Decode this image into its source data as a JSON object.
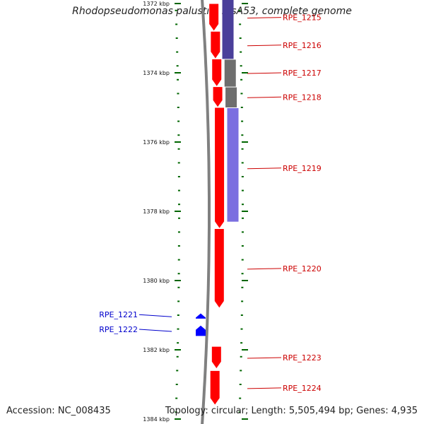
{
  "title": "Rhodopseudomonas palustris BisA53, complete genome",
  "footer": {
    "accession": "Accession: NC_008435",
    "info": "Topology: circular; Length: 5,505,494 bp; Genes: 4,935"
  },
  "colors": {
    "gene_red": "#ff0000",
    "gene_blue": "#0000ff",
    "tick_green": "#006600",
    "label_red": "#cc0000",
    "label_blue": "#0000cc",
    "cds_dark": "#4a3f9a",
    "cds_gray": "#6e6e6e",
    "cds_light": "#7b6fe0",
    "backbone": "#808080"
  },
  "axis": {
    "unit": "kbp",
    "ticks": [
      {
        "kbp": 1372,
        "label": "1372 kbp"
      },
      {
        "kbp": 1374,
        "label": "1374 kbp"
      },
      {
        "kbp": 1376,
        "label": "1376 kbp"
      },
      {
        "kbp": 1378,
        "label": "1378 kbp"
      },
      {
        "kbp": 1380,
        "label": "1380 kbp"
      },
      {
        "kbp": 1382,
        "label": "1382 kbp"
      },
      {
        "kbp": 1384,
        "label": "1384 kbp"
      }
    ]
  },
  "genes": [
    {
      "name": "RPE_1215",
      "start_kbp": 1372.0,
      "end_kbp": 1372.8,
      "strand": "forward",
      "label_color": "red"
    },
    {
      "name": "RPE_1216",
      "start_kbp": 1372.8,
      "end_kbp": 1373.6,
      "strand": "forward",
      "label_color": "red"
    },
    {
      "name": "RPE_1217",
      "start_kbp": 1373.6,
      "end_kbp": 1374.4,
      "strand": "forward",
      "label_color": "red"
    },
    {
      "name": "RPE_1218",
      "start_kbp": 1374.4,
      "end_kbp": 1375.0,
      "strand": "forward",
      "label_color": "red"
    },
    {
      "name": "RPE_1219",
      "start_kbp": 1375.0,
      "end_kbp": 1378.5,
      "strand": "forward",
      "label_color": "red"
    },
    {
      "name": "RPE_1220",
      "start_kbp": 1378.5,
      "end_kbp": 1380.8,
      "strand": "forward",
      "label_color": "red"
    },
    {
      "name": "RPE_1221",
      "start_kbp": 1380.95,
      "end_kbp": 1381.1,
      "strand": "reverse",
      "label_color": "blue"
    },
    {
      "name": "RPE_1222",
      "start_kbp": 1381.3,
      "end_kbp": 1381.6,
      "strand": "reverse",
      "label_color": "blue"
    },
    {
      "name": "RPE_1223",
      "start_kbp": 1381.9,
      "end_kbp": 1382.55,
      "strand": "forward",
      "label_color": "red"
    },
    {
      "name": "RPE_1224",
      "start_kbp": 1382.6,
      "end_kbp": 1383.6,
      "strand": "forward",
      "label_color": "red"
    }
  ],
  "cds_track": [
    {
      "start_kbp": 1371.8,
      "end_kbp": 1373.6,
      "color": "dark"
    },
    {
      "start_kbp": 1373.6,
      "end_kbp": 1374.4,
      "color": "gray"
    },
    {
      "start_kbp": 1374.4,
      "end_kbp": 1375.0,
      "color": "gray"
    },
    {
      "start_kbp": 1375.0,
      "end_kbp": 1378.3,
      "color": "light"
    }
  ]
}
